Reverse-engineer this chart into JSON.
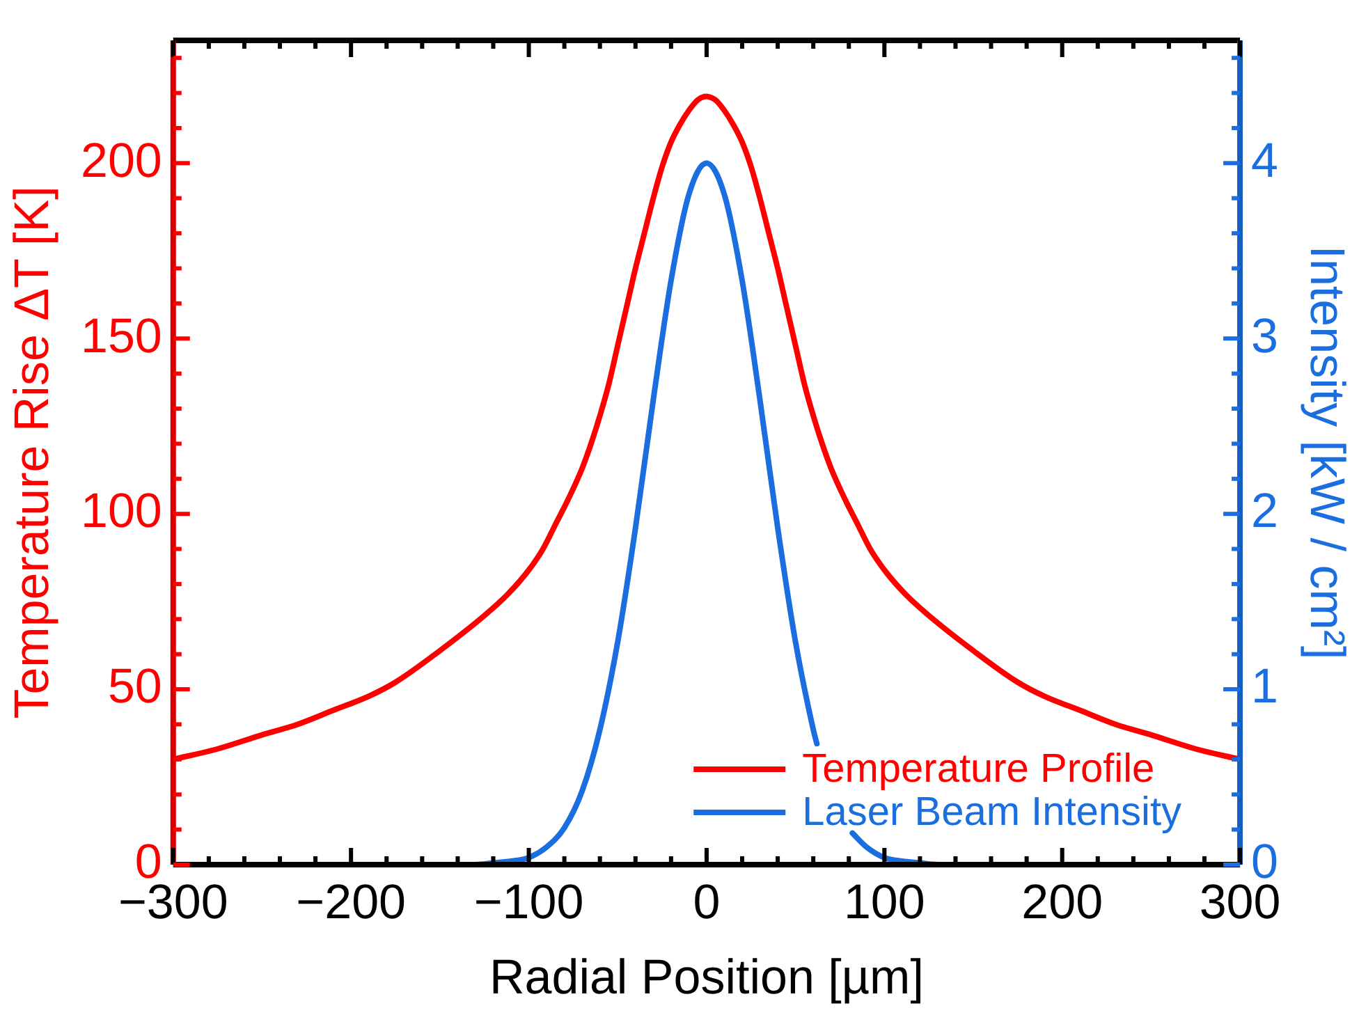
{
  "chart_data": {
    "type": "line",
    "xlabel": "Radial Position [µm]",
    "ylabel": "Temperature Rise ΔT [K]",
    "y2label": "Intensity [kW / cm²]",
    "xlim": [
      -300,
      300
    ],
    "ylim": [
      0,
      235
    ],
    "y2lim": [
      0,
      4.7
    ],
    "xticks": [
      {
        "value": -300,
        "label": "−300"
      },
      {
        "value": -280,
        "label": null
      },
      {
        "value": -260,
        "label": null
      },
      {
        "value": -240,
        "label": null
      },
      {
        "value": -220,
        "label": null
      },
      {
        "value": -200,
        "label": "−200"
      },
      {
        "value": -180,
        "label": null
      },
      {
        "value": -160,
        "label": null
      },
      {
        "value": -140,
        "label": null
      },
      {
        "value": -120,
        "label": null
      },
      {
        "value": -100,
        "label": "−100"
      },
      {
        "value": -80,
        "label": null
      },
      {
        "value": -60,
        "label": null
      },
      {
        "value": -40,
        "label": null
      },
      {
        "value": -20,
        "label": null
      },
      0,
      {
        "value": 20,
        "label": null
      },
      {
        "value": 40,
        "label": null
      },
      {
        "value": 60,
        "label": null
      },
      {
        "value": 80,
        "label": null
      },
      100,
      {
        "value": 120,
        "label": null
      },
      {
        "value": 140,
        "label": null
      },
      {
        "value": 160,
        "label": null
      },
      {
        "value": 180,
        "label": null
      },
      200,
      {
        "value": 220,
        "label": null
      },
      {
        "value": 240,
        "label": null
      },
      {
        "value": 260,
        "label": null
      },
      {
        "value": 280,
        "label": null
      },
      300
    ],
    "yticks": [
      0,
      {
        "value": 10,
        "label": null
      },
      {
        "value": 20,
        "label": null
      },
      {
        "value": 30,
        "label": null
      },
      {
        "value": 40,
        "label": null
      },
      50,
      {
        "value": 60,
        "label": null
      },
      {
        "value": 70,
        "label": null
      },
      {
        "value": 80,
        "label": null
      },
      {
        "value": 90,
        "label": null
      },
      100,
      {
        "value": 110,
        "label": null
      },
      {
        "value": 120,
        "label": null
      },
      {
        "value": 130,
        "label": null
      },
      {
        "value": 140,
        "label": null
      },
      150,
      {
        "value": 160,
        "label": null
      },
      {
        "value": 170,
        "label": null
      },
      {
        "value": 180,
        "label": null
      },
      {
        "value": 190,
        "label": null
      },
      200,
      {
        "value": 210,
        "label": null
      },
      {
        "value": 220,
        "label": null
      },
      {
        "value": 230,
        "label": null
      }
    ],
    "y2ticks": [
      0,
      {
        "value": 0.2,
        "label": null
      },
      {
        "value": 0.4,
        "label": null
      },
      {
        "value": 0.6,
        "label": null
      },
      {
        "value": 0.8,
        "label": null
      },
      1,
      {
        "value": 1.2,
        "label": null
      },
      {
        "value": 1.4,
        "label": null
      },
      {
        "value": 1.6,
        "label": null
      },
      {
        "value": 1.8,
        "label": null
      },
      2,
      {
        "value": 2.2,
        "label": null
      },
      {
        "value": 2.4,
        "label": null
      },
      {
        "value": 2.6,
        "label": null
      },
      {
        "value": 2.8,
        "label": null
      },
      3,
      {
        "value": 3.2,
        "label": null
      },
      {
        "value": 3.4,
        "label": null
      },
      {
        "value": 3.6,
        "label": null
      },
      {
        "value": 3.8,
        "label": null
      },
      4,
      {
        "value": 4.2,
        "label": null
      },
      {
        "value": 4.4,
        "label": null
      },
      {
        "value": 4.6,
        "label": null
      }
    ],
    "grid": false,
    "legend": "bottom right",
    "marker": "none",
    "line_style": "solid",
    "series": [
      {
        "name": "Temperature Profile",
        "color": "#ff0000",
        "x": [
          -300,
          -275,
          -250,
          -230,
          -210,
          -190,
          -175,
          -150,
          -125,
          -112,
          -100,
          -92,
          -85,
          -78,
          -70,
          -65,
          -60,
          -55,
          -50,
          -45,
          -40,
          -35,
          -30,
          -25,
          -20,
          -15,
          -10,
          -5,
          0,
          5,
          10,
          15,
          20,
          25,
          30,
          35,
          40,
          45,
          50,
          55,
          60,
          65,
          70,
          78,
          85,
          92,
          100,
          112,
          125,
          150,
          175,
          190,
          210,
          230,
          250,
          275,
          300
        ],
        "values": [
          30,
          33,
          37,
          40,
          44,
          48,
          52,
          61,
          71,
          77,
          84,
          90,
          97,
          104,
          113,
          120,
          128,
          137,
          148,
          159,
          170,
          180,
          190,
          199,
          206,
          211,
          215,
          218,
          219,
          218,
          215,
          211,
          206,
          199,
          190,
          180,
          170,
          159,
          148,
          137,
          128,
          120,
          113,
          104,
          97,
          90,
          84,
          77,
          71,
          61,
          52,
          48,
          44,
          40,
          37,
          33,
          30
        ]
      },
      {
        "name": "Laser Beam Intensity",
        "color": "#1a6ee0",
        "axis": "y2",
        "x": [
          -300,
          -150,
          -130,
          -120,
          -110,
          -100,
          -90,
          -80,
          -70,
          -60,
          -50,
          -40,
          -30,
          -20,
          -10,
          0,
          10,
          20,
          30,
          40,
          50,
          60,
          62,
          70,
          80,
          82,
          90,
          100,
          110,
          120,
          130,
          150,
          300
        ],
        "values": [
          0,
          0,
          0,
          0.01,
          0.02,
          0.04,
          0.1,
          0.21,
          0.42,
          0.77,
          1.27,
          1.92,
          2.65,
          3.33,
          3.82,
          4,
          3.82,
          3.33,
          2.65,
          1.92,
          1.27,
          0.77,
          0.69,
          null,
          null,
          0.18,
          0.1,
          0.04,
          0.02,
          0.01,
          0,
          0,
          0
        ]
      }
    ]
  }
}
